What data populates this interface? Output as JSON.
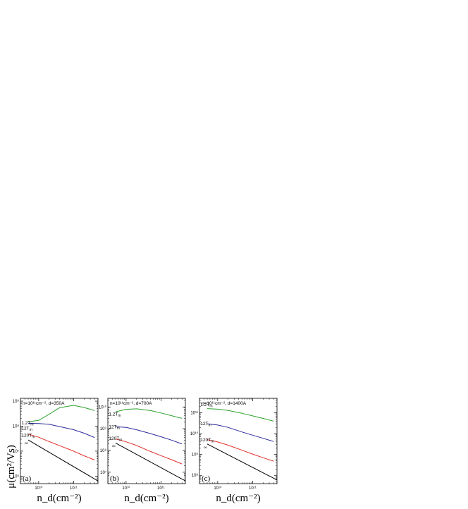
{
  "figure": {
    "ylabel": "μ(cm²/Vs)",
    "xlabel": "n_d(cm⁻²)"
  },
  "chart_data": [
    {
      "type": "line",
      "panel_label": "(a)",
      "annotation": "n=10¹¹cm⁻², d=350A",
      "x_log": true,
      "y_log": true,
      "xlim": [
        3000000000.0,
        500000000000.0
      ],
      "ylim": [
        500000,
        1300000000
      ],
      "x_ticks": [
        {
          "value": 10000000000.0,
          "label": "10¹⁰"
        },
        {
          "value": 100000000000.0,
          "label": "10¹¹"
        }
      ],
      "y_ticks": [
        {
          "value": 1000000,
          "label": "10⁶"
        },
        {
          "value": 10000000,
          "label": "10⁷"
        },
        {
          "value": 100000000,
          "label": "10⁸"
        },
        {
          "value": 1000000000,
          "label": "10⁹"
        }
      ],
      "series": [
        {
          "name": "1.2T_m",
          "color": "#2ca02c",
          "x": [
            5000000000.0,
            10000000000.0,
            20000000000.0,
            40000000000.0,
            100000000000.0,
            200000000000.0,
            400000000000.0
          ],
          "y": [
            150000000,
            170000000,
            300000000,
            550000000,
            680000000,
            560000000,
            420000000
          ]
        },
        {
          "name": "12T_m",
          "color": "#2b2b9b",
          "x": [
            5000000000.0,
            10000000000.0,
            20000000000.0,
            40000000000.0,
            100000000000.0,
            200000000000.0,
            400000000000.0
          ],
          "y": [
            130000000,
            128000000,
            118000000,
            96000000,
            72000000,
            52000000,
            35000000
          ]
        },
        {
          "name": "120T_m",
          "color": "#e0302a",
          "x": [
            5000000000.0,
            10000000000.0,
            20000000000.0,
            40000000000.0,
            100000000000.0,
            200000000000.0,
            400000000000.0
          ],
          "y": [
            48000000,
            36000000,
            24000000,
            16500000,
            10000000,
            6500000,
            4400000
          ]
        },
        {
          "name": "∞",
          "color": "#000000",
          "x": [
            5000000000.0,
            500000000000.0
          ],
          "y": [
            28000000,
            640000
          ]
        }
      ],
      "labels": [
        {
          "text": "1.2T_m",
          "x": 3200000000.0,
          "y": 135000000
        },
        {
          "text": "12T_m",
          "x": 3200000000.0,
          "y": 82000000
        },
        {
          "text": "120T_m",
          "x": 3200000000.0,
          "y": 43000000
        },
        {
          "text": "∞",
          "x": 4000000000.0,
          "y": 21000000
        }
      ]
    },
    {
      "type": "line",
      "panel_label": "(b)",
      "annotation": "n=10¹¹cm⁻², d=700A",
      "x_log": true,
      "y_log": true,
      "xlim": [
        3000000000.0,
        500000000000.0
      ],
      "ylim": [
        3000000,
        25000000000
      ],
      "x_ticks": [
        {
          "value": 10000000000.0,
          "label": "10¹⁰"
        },
        {
          "value": 100000000000.0,
          "label": "10¹¹"
        }
      ],
      "y_ticks": [
        {
          "value": 10000000,
          "label": "10⁷"
        },
        {
          "value": 100000000,
          "label": "10⁸"
        },
        {
          "value": 1000000000,
          "label": "10⁹"
        },
        {
          "value": 10000000000,
          "label": "10¹⁰"
        }
      ],
      "series": [
        {
          "name": "1.2T_m",
          "color": "#2ca02c",
          "x": [
            5000000000.0,
            10000000000.0,
            20000000000.0,
            50000000000.0,
            100000000000.0,
            200000000000.0,
            400000000000.0
          ],
          "y": [
            6000000000,
            7800000000,
            8200000000,
            6800000000,
            5300000000,
            4000000000,
            3000000000
          ]
        },
        {
          "name": "12T_m",
          "color": "#2b2b9b",
          "x": [
            5000000000.0,
            10000000000.0,
            20000000000.0,
            50000000000.0,
            100000000000.0,
            200000000000.0,
            400000000000.0
          ],
          "y": [
            1250000000,
            1150000000,
            900000000,
            600000000,
            430000000,
            300000000,
            200000000
          ]
        },
        {
          "name": "120T_m",
          "color": "#e0302a",
          "x": [
            5000000000.0,
            10000000000.0,
            20000000000.0,
            50000000000.0,
            100000000000.0,
            200000000000.0,
            400000000000.0
          ],
          "y": [
            340000000,
            250000000,
            170000000,
            90000000,
            58000000,
            38000000,
            24000000
          ]
        },
        {
          "name": "∞",
          "color": "#000000",
          "x": [
            5000000000.0,
            500000000000.0
          ],
          "y": [
            220000000,
            4000000
          ]
        }
      ],
      "labels": [
        {
          "text": "1.2T_m",
          "x": 3200000000.0,
          "y": 4600000000
        },
        {
          "text": "12T_m",
          "x": 3200000000.0,
          "y": 1200000000
        },
        {
          "text": "120T_m",
          "x": 3200000000.0,
          "y": 350000000
        },
        {
          "text": "∞",
          "x": 4000000000.0,
          "y": 160000000
        }
      ]
    },
    {
      "type": "line",
      "panel_label": "(c)",
      "annotation": "n=10¹¹cm⁻², d=1400A",
      "x_log": true,
      "y_log": true,
      "xlim": [
        3000000000.0,
        500000000000.0
      ],
      "ylim": [
        40000000,
        500000000000
      ],
      "x_ticks": [
        {
          "value": 10000000000.0,
          "label": "10¹⁰"
        },
        {
          "value": 100000000000.0,
          "label": "10¹¹"
        }
      ],
      "y_ticks": [
        {
          "value": 100000000,
          "label": "10⁸"
        },
        {
          "value": 1000000000,
          "label": "10⁹"
        },
        {
          "value": 10000000000,
          "label": "10¹⁰"
        },
        {
          "value": 100000000000,
          "label": "10¹¹"
        }
      ],
      "series": [
        {
          "name": "1.2T_m",
          "color": "#2ca02c",
          "x": [
            5000000000.0,
            10000000000.0,
            20000000000.0,
            50000000000.0,
            100000000000.0,
            200000000000.0,
            400000000000.0
          ],
          "y": [
            160000000000,
            150000000000,
            130000000000,
            95000000000,
            72000000000,
            54000000000,
            40000000000
          ]
        },
        {
          "name": "12T_m",
          "color": "#2b2b9b",
          "x": [
            5000000000.0,
            10000000000.0,
            20000000000.0,
            50000000000.0,
            100000000000.0,
            200000000000.0,
            400000000000.0
          ],
          "y": [
            30000000000,
            26000000000,
            20000000000,
            12000000000,
            8500000000,
            6000000000,
            4200000000
          ]
        },
        {
          "name": "120T_m",
          "color": "#e0302a",
          "x": [
            5000000000.0,
            10000000000.0,
            20000000000.0,
            50000000000.0,
            100000000000.0,
            200000000000.0,
            400000000000.0
          ],
          "y": [
            5200000000,
            4000000000,
            2800000000,
            1600000000,
            1050000000,
            700000000,
            480000000
          ]
        },
        {
          "name": "∞",
          "color": "#000000",
          "x": [
            5000000000.0,
            500000000000.0
          ],
          "y": [
            3200000000,
            60000000
          ]
        }
      ],
      "labels": [
        {
          "text": "1.2T_m",
          "x": 3200000000.0,
          "y": 250000000000
        },
        {
          "text": "12T_m",
          "x": 3200000000.0,
          "y": 30000000000
        },
        {
          "text": "120T_m",
          "x": 3200000000.0,
          "y": 5000000000
        },
        {
          "text": "∞",
          "x": 4000000000.0,
          "y": 2200000000
        }
      ]
    }
  ]
}
